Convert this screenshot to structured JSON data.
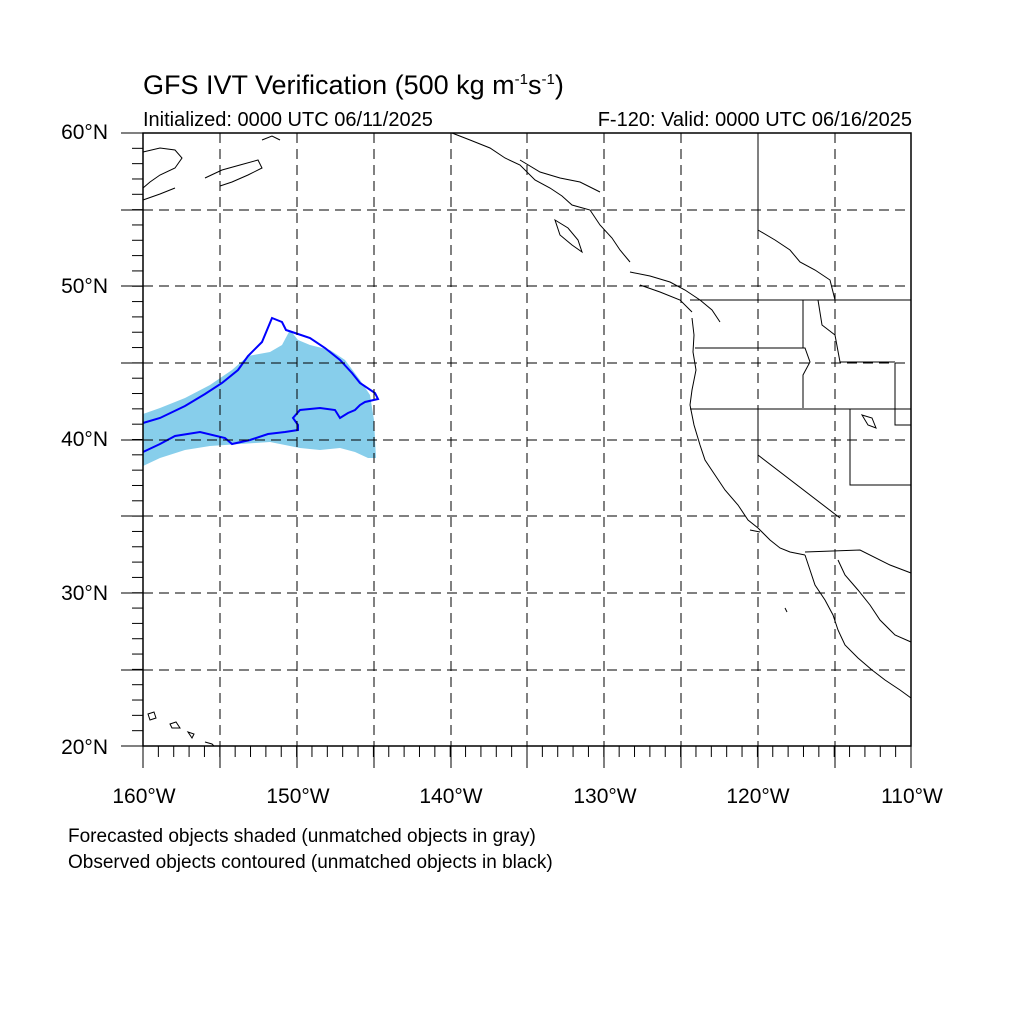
{
  "map": {
    "title_main": "GFS IVT Verification (500 kg m",
    "title_sup1": "-1",
    "title_mid": "s",
    "title_sup2": "-1",
    "title_end": ")",
    "init_label": "Initialized: 0000 UTC 06/11/2025",
    "valid_label": "F-120: Valid: 0000 UTC 06/16/2025",
    "lat_labels": [
      "60°N",
      "50°N",
      "40°N",
      "30°N",
      "20°N"
    ],
    "lon_labels": [
      "160°W",
      "150°W",
      "140°W",
      "130°W",
      "120°W",
      "110°W"
    ],
    "extent": {
      "lon_min": -160,
      "lon_max": -110,
      "lat_min": 20,
      "lat_max": 60
    },
    "caption_forecast": "Forecasted objects shaded (unmatched objects in gray)",
    "caption_observed": "Observed objects contoured (unmatched objects in black)",
    "colors": {
      "forecast_fill": "#87ceeb",
      "observed_contour": "#0000ff",
      "coastline": "#000000",
      "grid": "#000000"
    },
    "grid_style": "dashed"
  }
}
